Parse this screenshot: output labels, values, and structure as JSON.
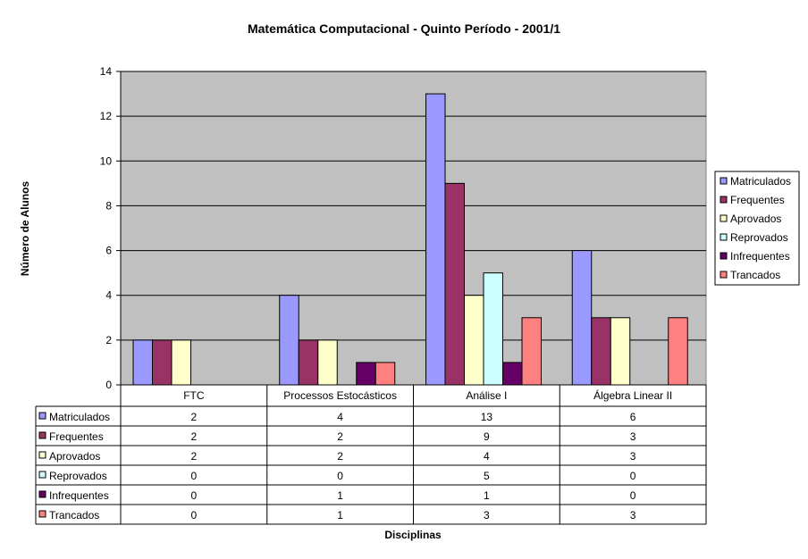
{
  "chart_data": {
    "type": "bar",
    "title": "Matemática Computacional - Quinto Período - 2001/1",
    "xlabel": "Disciplinas",
    "ylabel": "Número de Alunos",
    "ylim": [
      0,
      14
    ],
    "yticks": [
      0,
      2,
      4,
      6,
      8,
      10,
      12,
      14
    ],
    "grid": true,
    "legend_position": "right",
    "data_table": true,
    "categories": [
      "FTC",
      "Processos Estocásticos",
      "Análise I",
      "Álgebra Linear II"
    ],
    "series": [
      {
        "name": "Matriculados",
        "color": "#9999FF",
        "values": [
          2,
          4,
          13,
          6
        ]
      },
      {
        "name": "Frequentes",
        "color": "#993366",
        "values": [
          2,
          2,
          9,
          3
        ]
      },
      {
        "name": "Aprovados",
        "color": "#FFFFCC",
        "values": [
          2,
          2,
          4,
          3
        ]
      },
      {
        "name": "Reprovados",
        "color": "#CCFFFF",
        "values": [
          0,
          0,
          5,
          0
        ]
      },
      {
        "name": "Infrequentes",
        "color": "#660066",
        "values": [
          0,
          1,
          1,
          0
        ]
      },
      {
        "name": "Trancados",
        "color": "#FF8080",
        "values": [
          0,
          1,
          3,
          3
        ]
      }
    ],
    "plot_background": "#C0C0C0"
  }
}
